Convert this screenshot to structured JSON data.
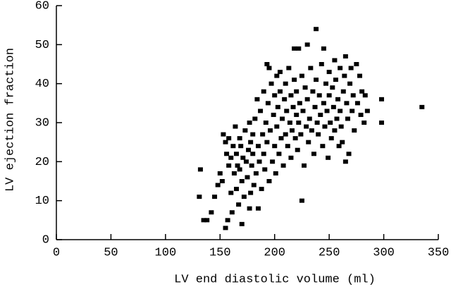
{
  "chart_data": {
    "type": "scatter",
    "xlabel": "LV end diastolic volume (ml)",
    "ylabel": "LV ejection fraction",
    "xlim": [
      0,
      350
    ],
    "ylim": [
      0,
      60
    ],
    "xticks": [
      0,
      50,
      100,
      150,
      200,
      250,
      300,
      350
    ],
    "yticks": [
      0,
      10,
      20,
      30,
      40,
      50,
      60
    ],
    "color": "#000000",
    "x": [
      131,
      132,
      135,
      138,
      142,
      145,
      148,
      150,
      152,
      153,
      155,
      155,
      156,
      157,
      158,
      158,
      160,
      160,
      161,
      162,
      163,
      164,
      165,
      165,
      166,
      167,
      168,
      168,
      169,
      170,
      170,
      171,
      172,
      173,
      174,
      175,
      176,
      177,
      177,
      178,
      178,
      179,
      180,
      180,
      181,
      182,
      183,
      184,
      185,
      185,
      186,
      187,
      188,
      189,
      190,
      190,
      191,
      192,
      193,
      193,
      194,
      195,
      195,
      196,
      197,
      198,
      199,
      200,
      200,
      201,
      202,
      202,
      203,
      204,
      205,
      205,
      206,
      207,
      208,
      209,
      210,
      210,
      211,
      212,
      213,
      214,
      215,
      215,
      216,
      217,
      218,
      218,
      219,
      220,
      220,
      221,
      222,
      222,
      223,
      224,
      225,
      225,
      226,
      227,
      228,
      229,
      230,
      230,
      231,
      232,
      233,
      234,
      235,
      236,
      237,
      238,
      238,
      239,
      240,
      241,
      242,
      243,
      244,
      245,
      245,
      246,
      247,
      248,
      249,
      250,
      250,
      251,
      252,
      253,
      254,
      255,
      255,
      256,
      257,
      258,
      259,
      260,
      260,
      261,
      262,
      263,
      264,
      265,
      265,
      266,
      267,
      268,
      269,
      270,
      271,
      272,
      273,
      275,
      276,
      278,
      279,
      280,
      282,
      283,
      285,
      298,
      298,
      335
    ],
    "values": [
      11,
      18,
      5,
      5,
      7,
      11,
      14,
      17,
      15,
      27,
      3,
      25,
      22,
      5,
      26,
      19,
      12,
      21,
      7,
      24,
      17,
      29,
      13,
      22,
      19,
      9,
      26,
      18,
      24,
      4,
      15,
      21,
      11,
      28,
      20,
      16,
      23,
      8,
      30,
      12,
      25,
      19,
      22,
      27,
      14,
      31,
      17,
      36,
      24,
      8,
      20,
      33,
      13,
      27,
      38,
      22,
      18,
      30,
      45,
      25,
      35,
      44,
      15,
      28,
      40,
      20,
      32,
      37,
      24,
      17,
      42,
      29,
      34,
      22,
      43,
      38,
      26,
      31,
      19,
      36,
      40,
      27,
      33,
      24,
      44,
      30,
      37,
      21,
      28,
      34,
      49,
      41,
      26,
      32,
      38,
      23,
      49,
      30,
      35,
      27,
      10,
      42,
      33,
      19,
      39,
      29,
      50,
      36,
      25,
      31,
      44,
      28,
      38,
      22,
      34,
      54,
      41,
      30,
      27,
      37,
      32,
      45,
      24,
      49,
      35,
      29,
      40,
      33,
      21,
      43,
      37,
      30,
      26,
      39,
      34,
      46,
      28,
      41,
      31,
      36,
      24,
      44,
      33,
      29,
      25,
      38,
      42,
      47,
      20,
      35,
      31,
      22,
      40,
      44,
      33,
      37,
      28,
      45,
      35,
      42,
      32,
      38,
      30,
      37,
      33,
      36,
      30,
      34
    ]
  }
}
